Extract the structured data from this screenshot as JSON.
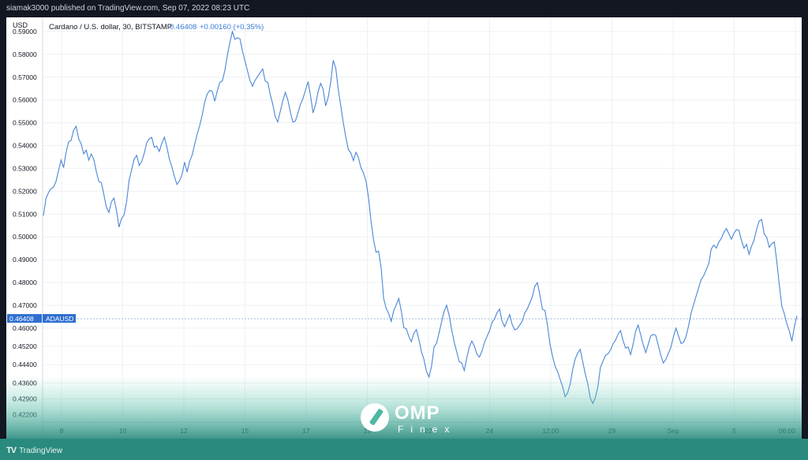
{
  "header": {
    "publisher": "siamak3000 published on TradingView.com, Sep 07, 2022 08:23 UTC"
  },
  "legend": {
    "symbol": "Cardano / U.S. dollar, 30, BITSTAMP",
    "price": "0.46408",
    "change": "+0.00160 (+0.35%)"
  },
  "branding": {
    "tradingview": "TradingView",
    "watermark_main": "OMP",
    "watermark_sub": "Finex"
  },
  "colors": {
    "line": "#4a86d6",
    "axis_text": "#131722",
    "grid": "#eef0f4",
    "price_tag": "#2f6fd1",
    "legend_value": "#3a7bd5"
  },
  "chart_data": {
    "type": "line",
    "title": "Cardano / U.S. dollar, 30, BITSTAMP",
    "ylabel": "USD",
    "ylim": [
      0.4188,
      0.5962
    ],
    "y_ticks": [
      "0.59000",
      "0.58000",
      "0.57000",
      "0.56000",
      "0.55000",
      "0.54000",
      "0.53000",
      "0.52000",
      "0.51000",
      "0.50000",
      "0.49000",
      "0.48000",
      "0.47000",
      "0.46000",
      "0.45200",
      "0.44400",
      "0.43600",
      "0.42900",
      "0.42200"
    ],
    "x_ticks": [
      "8",
      "10",
      "12",
      "15",
      "17",
      "19",
      "22",
      "24",
      "12:00",
      "29",
      "Sep",
      "5",
      "06:00"
    ],
    "last_value_label": "0.46408",
    "last_value_symbol": "ADAUSD",
    "grid": true,
    "series": [
      {
        "values": [
          0.511,
          0.515,
          0.518,
          0.52,
          0.521,
          0.524,
          0.529,
          0.534,
          0.531,
          0.538,
          0.543,
          0.544,
          0.545,
          0.547,
          0.542,
          0.54,
          0.536,
          0.538,
          0.534,
          0.537,
          0.535,
          0.53,
          0.526,
          0.522,
          0.517,
          0.512,
          0.51,
          0.515,
          0.517,
          0.512,
          0.505,
          0.509,
          0.511,
          0.517,
          0.523,
          0.528,
          0.533,
          0.535,
          0.531,
          0.533,
          0.537,
          0.542,
          0.544,
          0.545,
          0.541,
          0.538,
          0.536,
          0.54,
          0.543,
          0.539,
          0.534,
          0.531,
          0.527,
          0.524,
          0.526,
          0.529,
          0.531,
          0.527,
          0.532,
          0.535,
          0.54,
          0.545,
          0.549,
          0.554,
          0.56,
          0.564,
          0.566,
          0.562,
          0.558,
          0.563,
          0.567,
          0.568,
          0.573,
          0.58,
          0.586,
          0.591,
          0.588,
          0.589,
          0.585,
          0.58,
          0.576,
          0.572,
          0.568,
          0.566,
          0.569,
          0.571,
          0.573,
          0.575,
          0.57,
          0.566,
          0.561,
          0.557,
          0.552,
          0.55,
          0.555,
          0.56,
          0.564,
          0.561,
          0.556,
          0.552,
          0.549,
          0.553,
          0.557,
          0.56,
          0.564,
          0.568,
          0.562,
          0.555,
          0.559,
          0.565,
          0.569,
          0.563,
          0.556,
          0.56,
          0.567,
          0.577,
          0.574,
          0.565,
          0.558,
          0.551,
          0.545,
          0.54,
          0.535,
          0.532,
          0.536,
          0.534,
          0.53,
          0.528,
          0.525,
          0.518,
          0.508,
          0.5,
          0.495,
          0.492,
          0.485,
          0.472,
          0.468,
          0.466,
          0.463,
          0.468,
          0.471,
          0.474,
          0.469,
          0.462,
          0.458,
          0.455,
          0.453,
          0.457,
          0.459,
          0.455,
          0.45,
          0.447,
          0.442,
          0.44,
          0.445,
          0.45,
          0.452,
          0.457,
          0.462,
          0.467,
          0.47,
          0.466,
          0.46,
          0.455,
          0.451,
          0.447,
          0.443,
          0.44,
          0.446,
          0.451,
          0.454,
          0.452,
          0.449,
          0.448,
          0.451,
          0.455,
          0.458,
          0.457,
          0.461,
          0.463,
          0.466,
          0.468,
          0.463,
          0.461,
          0.464,
          0.467,
          0.463,
          0.461,
          0.458,
          0.46,
          0.462,
          0.466,
          0.468,
          0.471,
          0.474,
          0.479,
          0.481,
          0.476,
          0.47,
          0.466,
          0.46,
          0.452,
          0.447,
          0.443,
          0.441,
          0.438,
          0.435,
          0.431,
          0.433,
          0.437,
          0.44,
          0.445,
          0.448,
          0.45,
          0.445,
          0.44,
          0.436,
          0.43,
          0.428,
          0.431,
          0.436,
          0.441,
          0.444,
          0.447,
          0.448,
          0.45,
          0.453,
          0.455,
          0.458,
          0.46,
          0.456,
          0.453,
          0.45,
          0.447,
          0.452,
          0.458,
          0.461,
          0.457,
          0.453,
          0.45,
          0.454,
          0.458,
          0.459,
          0.455,
          0.451,
          0.447,
          0.444,
          0.446,
          0.449,
          0.452,
          0.457,
          0.461,
          0.458,
          0.455,
          0.452,
          0.455,
          0.46,
          0.466,
          0.47,
          0.474,
          0.478,
          0.482,
          0.484,
          0.487,
          0.49,
          0.493,
          0.495,
          0.494,
          0.497,
          0.499,
          0.502,
          0.504,
          0.502,
          0.5,
          0.503,
          0.505,
          0.501,
          0.497,
          0.494,
          0.496,
          0.492,
          0.496,
          0.499,
          0.504,
          0.508,
          0.509,
          0.503,
          0.498,
          0.494,
          0.496,
          0.497,
          0.489,
          0.479,
          0.47,
          0.467,
          0.463,
          0.46,
          0.456,
          0.459,
          0.464
        ]
      }
    ]
  }
}
